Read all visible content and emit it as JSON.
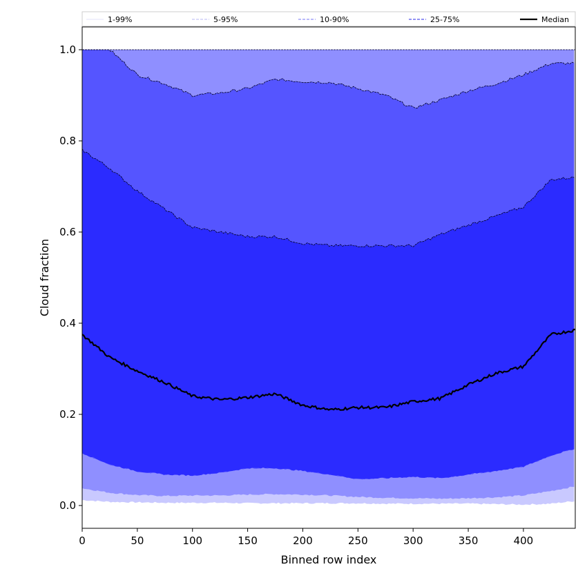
{
  "chart_data": {
    "type": "area",
    "xlabel": "Binned row index",
    "ylabel": "Cloud fraction",
    "xlim": [
      0,
      447
    ],
    "ylim": [
      -0.05,
      1.05
    ],
    "xticks": [
      "0",
      "50",
      "100",
      "150",
      "200",
      "250",
      "300",
      "350",
      "400"
    ],
    "yticks": [
      "0.0",
      "0.2",
      "0.4",
      "0.6",
      "0.8",
      "1.0"
    ],
    "legend_position": "top",
    "legend": [
      {
        "label": "1-99%",
        "color": "#e8e8fb",
        "style": "solid"
      },
      {
        "label": "5-95%",
        "color": "#c5c5f5",
        "style": "dashed"
      },
      {
        "label": "10-90%",
        "color": "#8f8ff7",
        "style": "dashed"
      },
      {
        "label": "25-75%",
        "color": "#5050ee",
        "style": "dashed"
      },
      {
        "label": "Median",
        "color": "#000000",
        "style": "solid"
      }
    ],
    "band_colors": [
      "#c9c9ff",
      "#8f8fff",
      "#5555ff",
      "#2b2bff"
    ],
    "x": [
      0,
      25,
      50,
      75,
      100,
      125,
      150,
      175,
      200,
      225,
      250,
      275,
      300,
      325,
      350,
      375,
      400,
      425,
      447
    ],
    "series": [
      {
        "name": "1-99%",
        "lower": [
          0.012,
          0.008,
          0.007,
          0.006,
          0.006,
          0.006,
          0.005,
          0.005,
          0.005,
          0.005,
          0.005,
          0.004,
          0.004,
          0.004,
          0.004,
          0.003,
          0.002,
          0.004,
          0.01
        ],
        "upper": [
          1.0,
          1.0,
          1.0,
          1.0,
          1.0,
          1.0,
          1.0,
          1.0,
          1.0,
          1.0,
          1.0,
          1.0,
          1.0,
          1.0,
          1.0,
          1.0,
          1.0,
          1.0,
          1.0
        ]
      },
      {
        "name": "5-95%",
        "lower": [
          0.038,
          0.028,
          0.023,
          0.021,
          0.022,
          0.022,
          0.024,
          0.025,
          0.024,
          0.022,
          0.019,
          0.017,
          0.016,
          0.015,
          0.016,
          0.018,
          0.022,
          0.032,
          0.042
        ],
        "upper": [
          1.0,
          1.0,
          1.0,
          1.0,
          1.0,
          1.0,
          1.0,
          1.0,
          1.0,
          1.0,
          1.0,
          1.0,
          1.0,
          1.0,
          1.0,
          1.0,
          1.0,
          1.0,
          1.0
        ]
      },
      {
        "name": "10-90%",
        "lower": [
          0.115,
          0.09,
          0.075,
          0.068,
          0.066,
          0.072,
          0.082,
          0.082,
          0.076,
          0.068,
          0.058,
          0.06,
          0.063,
          0.06,
          0.068,
          0.076,
          0.085,
          0.11,
          0.125
        ],
        "upper": [
          1.0,
          1.0,
          0.945,
          0.925,
          0.9,
          0.905,
          0.915,
          0.935,
          0.93,
          0.928,
          0.915,
          0.9,
          0.872,
          0.89,
          0.91,
          0.925,
          0.945,
          0.97,
          0.97
        ]
      },
      {
        "name": "25-75%",
        "lower": [
          0.115,
          0.09,
          0.075,
          0.068,
          0.066,
          0.072,
          0.082,
          0.082,
          0.076,
          0.068,
          0.058,
          0.06,
          0.063,
          0.06,
          0.068,
          0.076,
          0.085,
          0.11,
          0.125
        ],
        "upper": [
          0.78,
          0.74,
          0.69,
          0.65,
          0.61,
          0.6,
          0.59,
          0.59,
          0.575,
          0.57,
          0.57,
          0.57,
          0.57,
          0.595,
          0.615,
          0.635,
          0.655,
          0.715,
          0.72
        ]
      }
    ],
    "median": {
      "name": "Median",
      "values": [
        0.375,
        0.325,
        0.295,
        0.27,
        0.24,
        0.232,
        0.237,
        0.245,
        0.22,
        0.21,
        0.215,
        0.215,
        0.228,
        0.235,
        0.265,
        0.29,
        0.305,
        0.375,
        0.385
      ]
    }
  }
}
